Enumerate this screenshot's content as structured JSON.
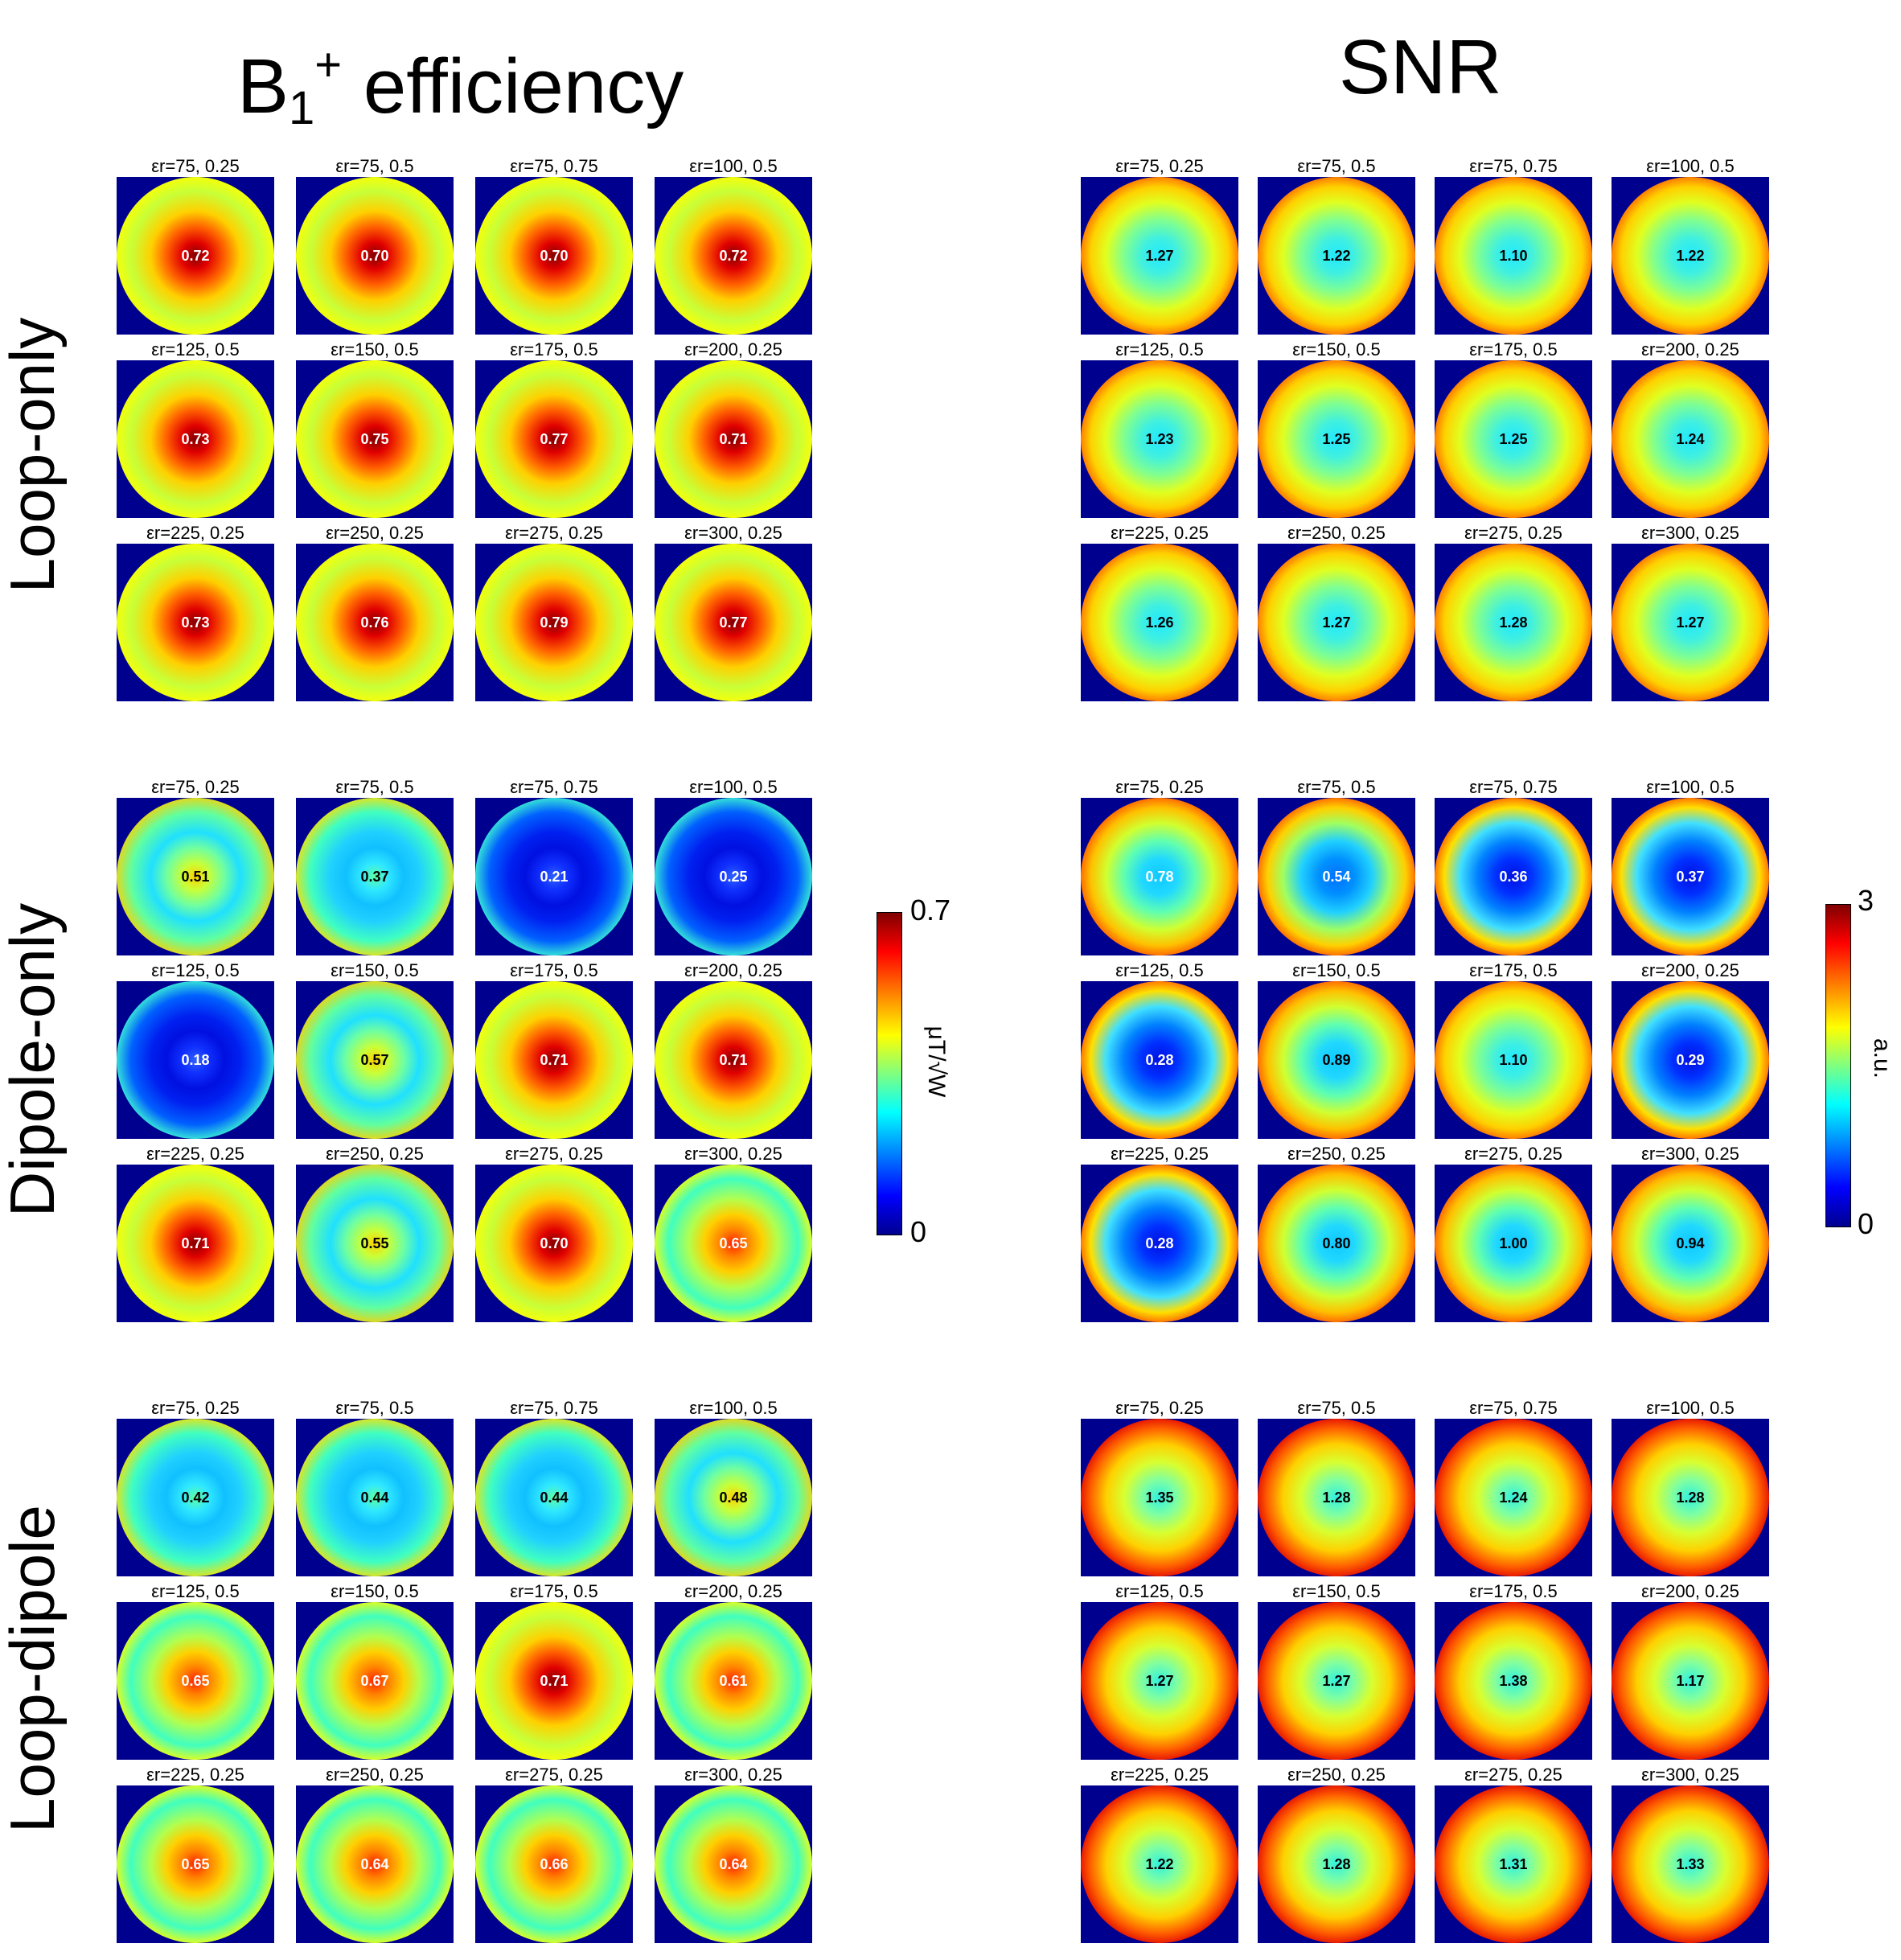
{
  "titles": {
    "b1_main": "B",
    "b1_sub": "1",
    "b1_sup": "+",
    "b1_rest": " efficiency",
    "snr": "SNR"
  },
  "row_labels": [
    "Loop-only",
    "Dipole-only",
    "Loop-dipole"
  ],
  "cell_labels": [
    "εr=75, 0.25",
    "εr=75, 0.5",
    "εr=75, 0.75",
    "εr=100, 0.5",
    "εr=125, 0.5",
    "εr=150, 0.5",
    "εr=175, 0.5",
    "εr=200, 0.25",
    "εr=225, 0.25",
    "εr=250, 0.25",
    "εr=275, 0.25",
    "εr=300, 0.25"
  ],
  "b1_colorbar": {
    "max": "0.7",
    "min": "0",
    "unit": "μT/√W"
  },
  "snr_colorbar": {
    "max": "3",
    "min": "0",
    "unit": "a.u."
  },
  "b1_values": {
    "loop_only": [
      "0.72",
      "0.70",
      "0.70",
      "0.72",
      "0.73",
      "0.75",
      "0.77",
      "0.71",
      "0.73",
      "0.76",
      "0.79",
      "0.77"
    ],
    "dipole_only": [
      "0.51",
      "0.37",
      "0.21",
      "0.25",
      "0.18",
      "0.57",
      "0.71",
      "0.71",
      "0.71",
      "0.55",
      "0.70",
      "0.65"
    ],
    "loop_dipole": [
      "0.42",
      "0.44",
      "0.44",
      "0.48",
      "0.65",
      "0.67",
      "0.71",
      "0.61",
      "0.65",
      "0.64",
      "0.66",
      "0.64"
    ]
  },
  "snr_values": {
    "loop_only": [
      "1.27",
      "1.22",
      "1.10",
      "1.22",
      "1.23",
      "1.25",
      "1.25",
      "1.24",
      "1.26",
      "1.27",
      "1.28",
      "1.27"
    ],
    "dipole_only": [
      "0.78",
      "0.54",
      "0.36",
      "0.37",
      "0.28",
      "0.89",
      "1.10",
      "0.29",
      "0.28",
      "0.80",
      "1.00",
      "0.94"
    ],
    "loop_dipole": [
      "1.35",
      "1.28",
      "1.24",
      "1.28",
      "1.27",
      "1.27",
      "1.38",
      "1.17",
      "1.22",
      "1.28",
      "1.31",
      "1.33"
    ]
  },
  "colors": {
    "background_blue": "#00008f",
    "jet_dark_red": "#800000",
    "jet_red": "#ff0000",
    "jet_orange": "#ff8000",
    "jet_yellow": "#ffff00",
    "jet_cyan": "#00ffff",
    "jet_blue": "#0000ff",
    "jet_navy": "#00008f"
  }
}
